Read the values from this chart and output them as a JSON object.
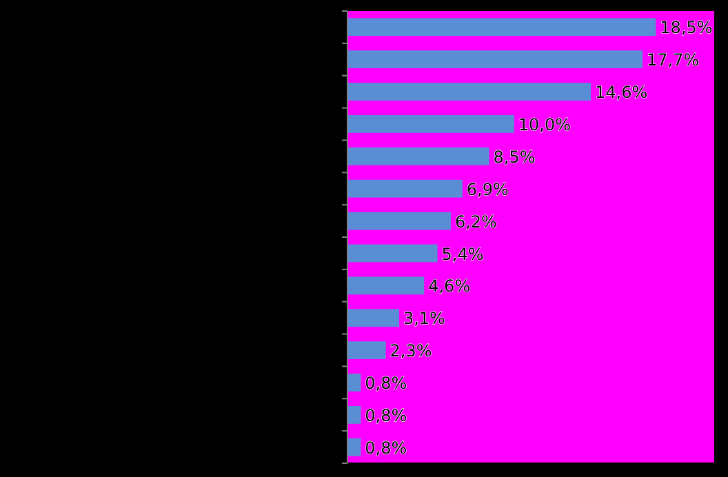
{
  "chart_data": {
    "type": "bar",
    "orientation": "horizontal",
    "categories": [
      null,
      null,
      null,
      null,
      null,
      null,
      null,
      null,
      null,
      null,
      null,
      null,
      null,
      null
    ],
    "values": [
      18.5,
      17.7,
      14.6,
      10.0,
      8.5,
      6.9,
      6.2,
      5.4,
      4.6,
      3.1,
      2.3,
      0.8,
      0.8,
      0.8
    ],
    "value_labels": [
      "18,5%",
      "17,7%",
      "14,6%",
      "10,0%",
      "8,5%",
      "6,9%",
      "6,2%",
      "5,4%",
      "4,6%",
      "3,1%",
      "2,3%",
      "0,8%",
      "0,8%",
      "0,8%"
    ],
    "color": "#5a8ed4",
    "xlim": [
      0,
      22
    ]
  }
}
